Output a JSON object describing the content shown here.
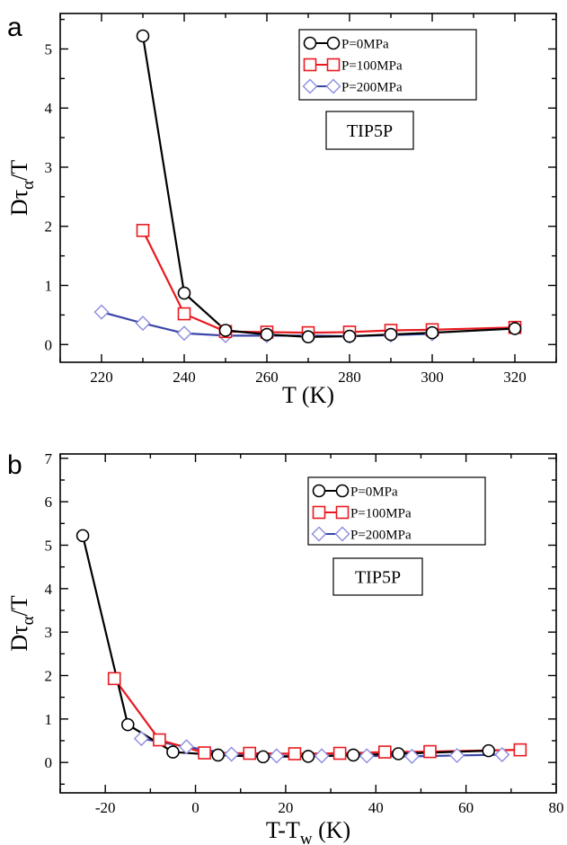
{
  "colors": {
    "p0": "#000000",
    "p100": "#e8191f",
    "p200": "#3a46a8",
    "p200_marker": "#8c8ce0"
  },
  "chart_data": [
    {
      "type": "line",
      "panel": "a",
      "xlabel": "T (K)",
      "ylabel": "Dτα/T",
      "xlim": [
        210,
        330
      ],
      "ylim": [
        -0.3,
        5.6
      ],
      "xticks": [
        220,
        240,
        260,
        280,
        300,
        320
      ],
      "yticks": [
        0,
        1,
        2,
        3,
        4,
        5
      ],
      "grid": false,
      "legend_position": "top-right",
      "model_label": "TIP5P",
      "series": [
        {
          "name": "P=0MPa",
          "marker": "circle",
          "color_key": "p0",
          "x": [
            230,
            240,
            250,
            260,
            270,
            280,
            290,
            300,
            320
          ],
          "y": [
            5.22,
            0.87,
            0.24,
            0.17,
            0.13,
            0.14,
            0.17,
            0.2,
            0.27
          ]
        },
        {
          "name": "P=100MPa",
          "marker": "square",
          "color_key": "p100",
          "x": [
            230,
            240,
            250,
            260,
            270,
            280,
            290,
            300,
            320
          ],
          "y": [
            1.93,
            0.52,
            0.22,
            0.21,
            0.2,
            0.21,
            0.24,
            0.25,
            0.29
          ]
        },
        {
          "name": "P=200MPa",
          "marker": "diamond",
          "color_key": "p200",
          "x": [
            220,
            230,
            240,
            250,
            260,
            270,
            280,
            290,
            300
          ],
          "y": [
            0.55,
            0.36,
            0.19,
            0.15,
            0.15,
            0.15,
            0.14,
            0.16,
            0.18
          ]
        }
      ]
    },
    {
      "type": "line",
      "panel": "b",
      "xlabel": "T-Tw (K)",
      "ylabel": "Dτα/T",
      "xlim": [
        -30,
        80
      ],
      "ylim": [
        -0.7,
        7.1
      ],
      "xticks": [
        -20,
        0,
        20,
        40,
        60,
        80
      ],
      "yticks": [
        0,
        1,
        2,
        3,
        4,
        5,
        6,
        7
      ],
      "grid": false,
      "legend_position": "top-right",
      "model_label": "TIP5P",
      "series": [
        {
          "name": "P=0MPa",
          "marker": "circle",
          "color_key": "p0",
          "x": [
            -25,
            -15,
            -5,
            5,
            15,
            25,
            35,
            45,
            65
          ],
          "y": [
            5.22,
            0.87,
            0.24,
            0.17,
            0.13,
            0.14,
            0.17,
            0.2,
            0.27
          ]
        },
        {
          "name": "P=100MPa",
          "marker": "square",
          "color_key": "p100",
          "x": [
            -18,
            -8,
            2,
            12,
            22,
            32,
            42,
            52,
            72
          ],
          "y": [
            1.93,
            0.52,
            0.22,
            0.21,
            0.2,
            0.21,
            0.24,
            0.25,
            0.29
          ]
        },
        {
          "name": "P=200MPa",
          "marker": "diamond",
          "color_key": "p200",
          "x": [
            -12,
            -2,
            8,
            18,
            28,
            38,
            48,
            58,
            68
          ],
          "y": [
            0.55,
            0.36,
            0.19,
            0.15,
            0.15,
            0.15,
            0.14,
            0.16,
            0.18
          ]
        }
      ]
    }
  ]
}
